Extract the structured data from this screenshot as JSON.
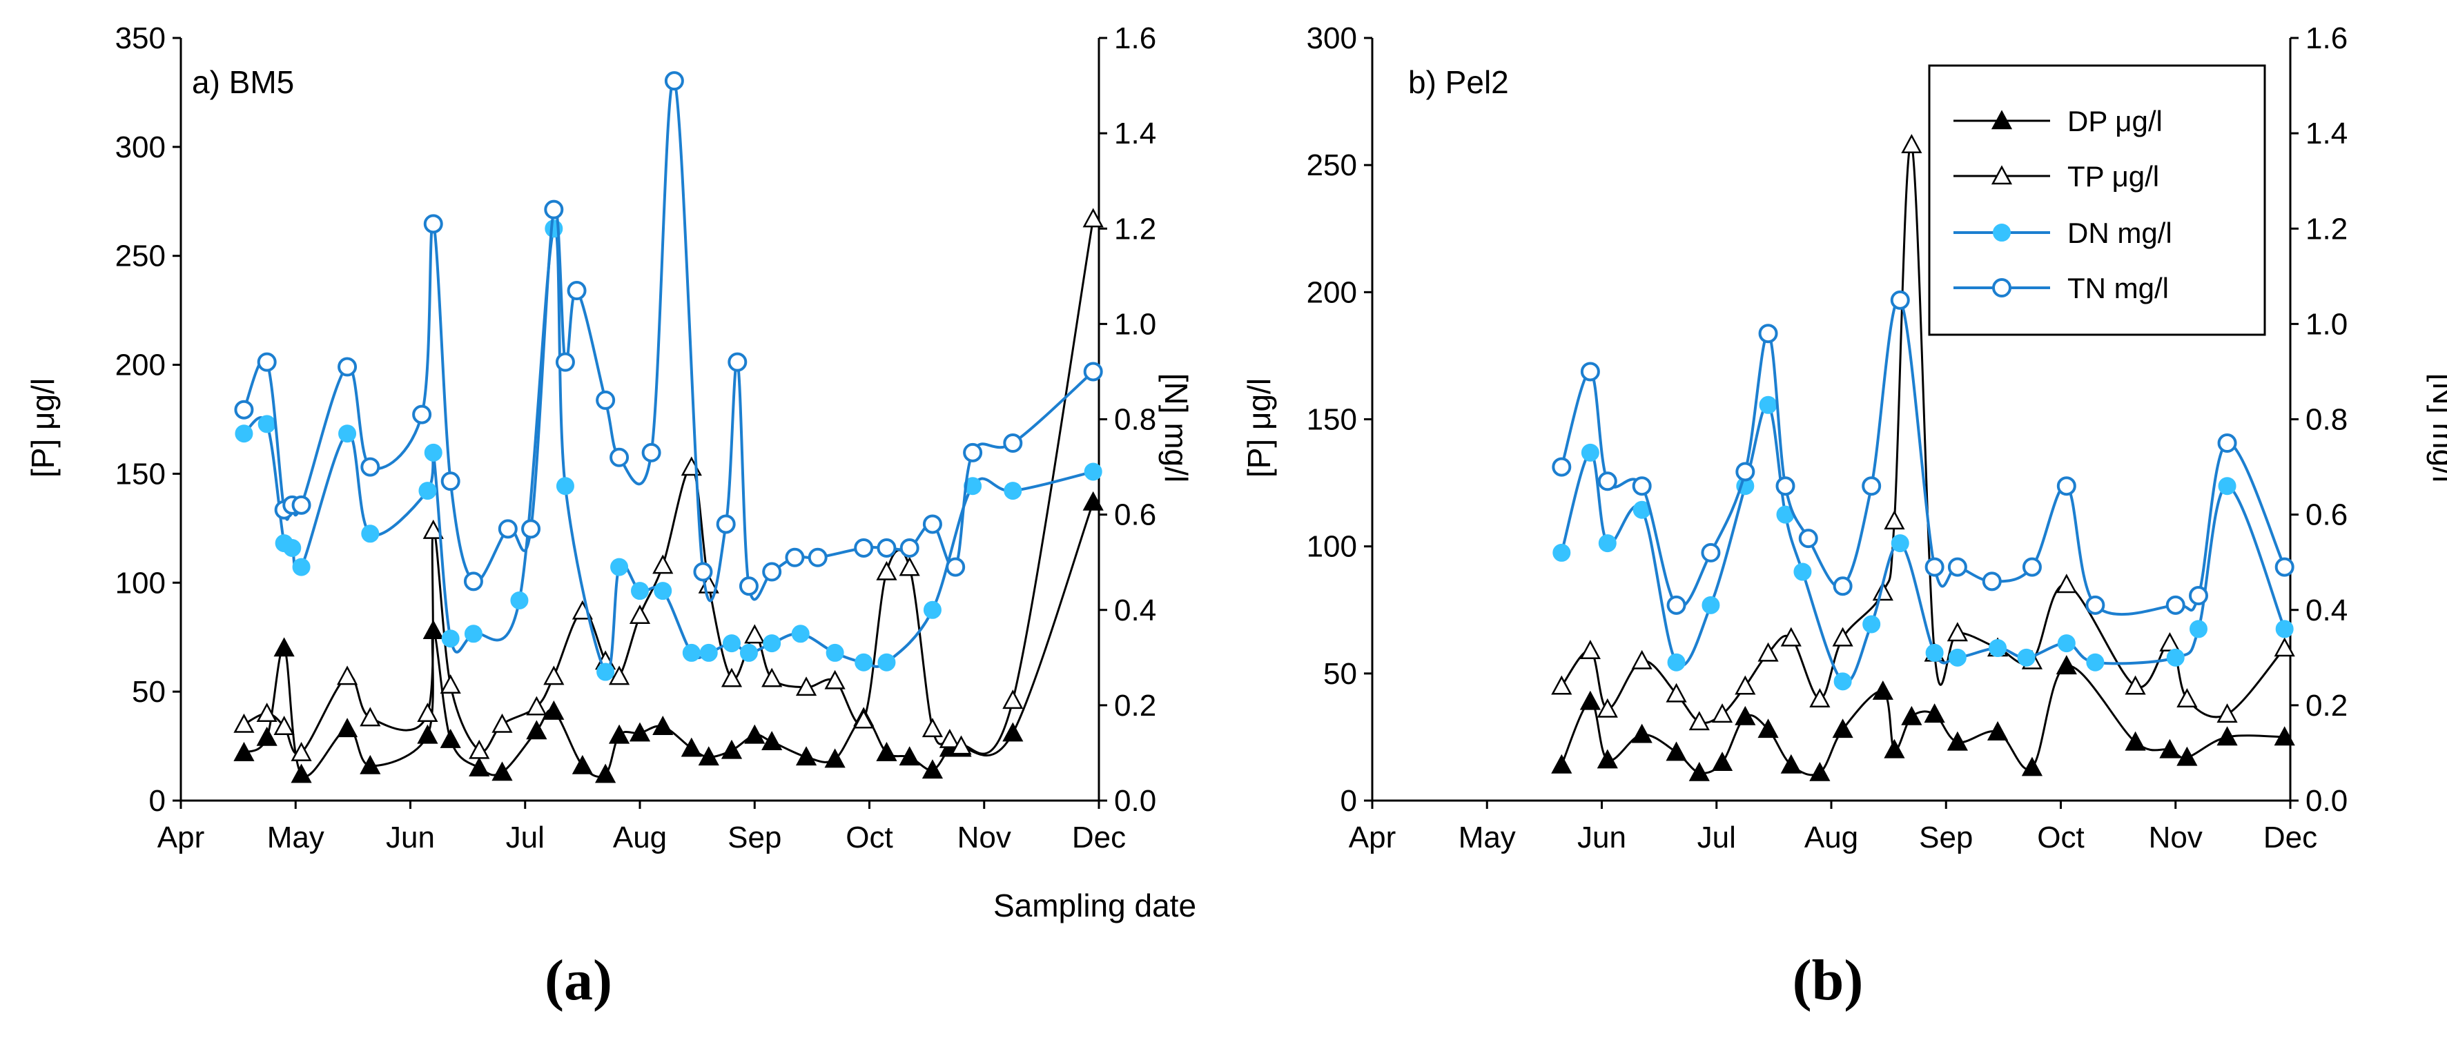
{
  "figure": {
    "xlabel": "Sampling date",
    "colors": {
      "p": "#000000",
      "n": "#1c7fd0",
      "n_marker": "#36c2ff"
    }
  },
  "legend": {
    "entries": [
      {
        "label": "DP μg/l",
        "color": "#000000",
        "marker": "filled-triangle"
      },
      {
        "label": "TP μg/l",
        "color": "#000000",
        "marker": "open-triangle"
      },
      {
        "label": "DN mg/l",
        "color": "#1c7fd0",
        "marker": "filled-circle"
      },
      {
        "label": "TN  mg/l",
        "color": "#1c7fd0",
        "marker": "open-circle"
      }
    ]
  },
  "chart_data": [
    {
      "type": "line",
      "panel_label": "a) BM5",
      "caption": "(a)",
      "ylabel": "[P] μg/l",
      "ylabel_right": "[N] mg/l",
      "ylim": [
        0,
        350
      ],
      "ylim_right": [
        0,
        1.6
      ],
      "yticks": [
        0,
        50,
        100,
        150,
        200,
        250,
        300,
        350
      ],
      "yticks_right": [
        "0.0",
        "0.2",
        "0.4",
        "0.6",
        "0.8",
        "1.0",
        "1.2",
        "1.4",
        "1.6"
      ],
      "xticks": [
        "Apr",
        "May",
        "Jun",
        "Jul",
        "Aug",
        "Sep",
        "Oct",
        "Nov",
        "Dec"
      ],
      "x_unit": "month (Apr = 0, Dec = 8)",
      "xlim": [
        0,
        8
      ],
      "series": [
        {
          "name": "DP μg/l",
          "axis": "left",
          "marker": "filled-triangle",
          "x": [
            0.55,
            0.75,
            0.9,
            1.05,
            1.45,
            1.65,
            2.15,
            2.2,
            2.35,
            2.6,
            2.8,
            3.1,
            3.25,
            3.5,
            3.7,
            3.82,
            4.0,
            4.2,
            4.45,
            4.6,
            4.8,
            5.0,
            5.15,
            5.45,
            5.7,
            5.95,
            6.15,
            6.35,
            6.55,
            6.7,
            6.8,
            7.25,
            7.95
          ],
          "y": [
            22,
            29,
            70,
            12,
            33,
            16,
            30,
            78,
            28,
            15,
            13,
            32,
            41,
            16,
            12,
            30,
            31,
            34,
            24,
            20,
            23,
            30,
            27,
            20,
            19,
            38,
            22,
            20,
            14,
            24,
            24,
            31,
            137
          ]
        },
        {
          "name": "TP μg/l",
          "axis": "left",
          "marker": "open-triangle",
          "x": [
            0.55,
            0.75,
            0.9,
            1.05,
            1.45,
            1.65,
            2.15,
            2.2,
            2.35,
            2.6,
            2.8,
            3.1,
            3.25,
            3.5,
            3.7,
            3.82,
            4.0,
            4.2,
            4.45,
            4.6,
            4.8,
            5.0,
            5.15,
            5.45,
            5.7,
            5.95,
            6.15,
            6.35,
            6.55,
            6.7,
            6.8,
            7.25,
            7.95
          ],
          "y": [
            35,
            40,
            34,
            22,
            57,
            38,
            40,
            124,
            53,
            23,
            35,
            43,
            57,
            87,
            64,
            57,
            85,
            108,
            153,
            99,
            56,
            76,
            56,
            52,
            55,
            37,
            105,
            107,
            33,
            28,
            25,
            46,
            267
          ]
        },
        {
          "name": "DN mg/l",
          "axis": "right",
          "marker": "filled-circle",
          "x": [
            0.55,
            0.75,
            0.9,
            0.97,
            1.05,
            1.45,
            1.65,
            2.15,
            2.2,
            2.35,
            2.55,
            2.95,
            3.25,
            3.35,
            3.7,
            3.82,
            4.0,
            4.2,
            4.45,
            4.6,
            4.8,
            4.95,
            5.15,
            5.4,
            5.7,
            5.95,
            6.15,
            6.55,
            6.9,
            7.25,
            7.95
          ],
          "y": [
            0.77,
            0.79,
            0.54,
            0.53,
            0.49,
            0.77,
            0.56,
            0.65,
            0.73,
            0.34,
            0.35,
            0.42,
            1.2,
            0.66,
            0.27,
            0.49,
            0.44,
            0.44,
            0.31,
            0.31,
            0.33,
            0.31,
            0.33,
            0.35,
            0.31,
            0.29,
            0.29,
            0.4,
            0.66,
            0.65,
            0.69
          ]
        },
        {
          "name": "TN  mg/l",
          "axis": "right",
          "marker": "open-circle",
          "x": [
            0.55,
            0.75,
            0.9,
            0.97,
            1.05,
            1.45,
            1.65,
            2.1,
            2.2,
            2.35,
            2.55,
            2.85,
            3.05,
            3.25,
            3.35,
            3.45,
            3.7,
            3.82,
            4.1,
            4.3,
            4.55,
            4.75,
            4.85,
            4.95,
            5.15,
            5.35,
            5.55,
            5.95,
            6.15,
            6.35,
            6.55,
            6.75,
            6.9,
            7.25,
            7.95
          ],
          "y": [
            0.82,
            0.92,
            0.61,
            0.62,
            0.62,
            0.91,
            0.7,
            0.81,
            1.21,
            0.67,
            0.46,
            0.57,
            0.57,
            1.24,
            0.92,
            1.07,
            0.84,
            0.72,
            0.73,
            1.51,
            0.48,
            0.58,
            0.92,
            0.45,
            0.48,
            0.51,
            0.51,
            0.53,
            0.53,
            0.53,
            0.58,
            0.49,
            0.73,
            0.75,
            0.9
          ]
        }
      ]
    },
    {
      "type": "line",
      "panel_label": "b) Pel2",
      "caption": "(b)",
      "ylabel": "[P] μg/l",
      "ylabel_right": "[N] mg/l",
      "ylim": [
        0,
        300
      ],
      "ylim_right": [
        0,
        1.6
      ],
      "yticks": [
        0,
        50,
        100,
        150,
        200,
        250,
        300
      ],
      "yticks_right": [
        "0.0",
        "0.2",
        "0.4",
        "0.6",
        "0.8",
        "1.0",
        "1.2",
        "1.4",
        "1.6"
      ],
      "xticks": [
        "Apr",
        "May",
        "Jun",
        "Jul",
        "Aug",
        "Sep",
        "Oct",
        "Nov",
        "Dec"
      ],
      "x_unit": "month (Apr = 0, Dec = 8)",
      "xlim": [
        0,
        8
      ],
      "legend": "top-right",
      "series": [
        {
          "name": "DP μg/l",
          "axis": "left",
          "marker": "filled-triangle",
          "x": [
            1.65,
            1.9,
            2.05,
            2.35,
            2.65,
            2.85,
            3.05,
            3.25,
            3.45,
            3.65,
            3.9,
            4.1,
            4.45,
            4.55,
            4.7,
            4.9,
            5.1,
            5.45,
            5.75,
            6.05,
            6.65,
            6.95,
            7.1,
            7.45,
            7.95
          ],
          "y": [
            14,
            39,
            16,
            26,
            19,
            11,
            15,
            33,
            28,
            14,
            11,
            28,
            43,
            20,
            33,
            34,
            23,
            27,
            13,
            53,
            23,
            20,
            17,
            25,
            25
          ]
        },
        {
          "name": "TP μg/l",
          "axis": "left",
          "marker": "open-triangle",
          "x": [
            1.65,
            1.9,
            2.05,
            2.35,
            2.65,
            2.85,
            3.05,
            3.25,
            3.45,
            3.65,
            3.9,
            4.1,
            4.45,
            4.55,
            4.7,
            4.9,
            5.1,
            5.45,
            5.75,
            6.05,
            6.65,
            6.95,
            7.1,
            7.45,
            7.95
          ],
          "y": [
            45,
            59,
            36,
            55,
            42,
            31,
            34,
            45,
            58,
            64,
            40,
            64,
            82,
            110,
            258,
            58,
            66,
            60,
            55,
            85,
            45,
            62,
            40,
            34,
            60
          ]
        },
        {
          "name": "DN mg/l",
          "axis": "right",
          "marker": "filled-circle",
          "x": [
            1.65,
            1.9,
            2.05,
            2.35,
            2.65,
            2.95,
            3.25,
            3.45,
            3.6,
            3.75,
            4.1,
            4.35,
            4.6,
            4.9,
            5.1,
            5.45,
            5.7,
            6.05,
            6.3,
            7.0,
            7.2,
            7.45,
            7.95
          ],
          "y": [
            0.52,
            0.73,
            0.54,
            0.61,
            0.29,
            0.41,
            0.66,
            0.83,
            0.6,
            0.48,
            0.25,
            0.37,
            0.54,
            0.31,
            0.3,
            0.32,
            0.3,
            0.33,
            0.29,
            0.3,
            0.36,
            0.66,
            0.36
          ]
        },
        {
          "name": "TN  mg/l",
          "axis": "right",
          "marker": "open-circle",
          "x": [
            1.65,
            1.9,
            2.05,
            2.35,
            2.65,
            2.95,
            3.25,
            3.45,
            3.6,
            3.8,
            4.1,
            4.35,
            4.6,
            4.9,
            5.1,
            5.4,
            5.75,
            6.05,
            6.3,
            7.0,
            7.2,
            7.45,
            7.95
          ],
          "y": [
            0.7,
            0.9,
            0.67,
            0.66,
            0.41,
            0.52,
            0.69,
            0.98,
            0.66,
            0.55,
            0.45,
            0.66,
            1.05,
            0.49,
            0.49,
            0.46,
            0.49,
            0.66,
            0.41,
            0.41,
            0.43,
            0.75,
            0.49
          ]
        }
      ]
    }
  ]
}
